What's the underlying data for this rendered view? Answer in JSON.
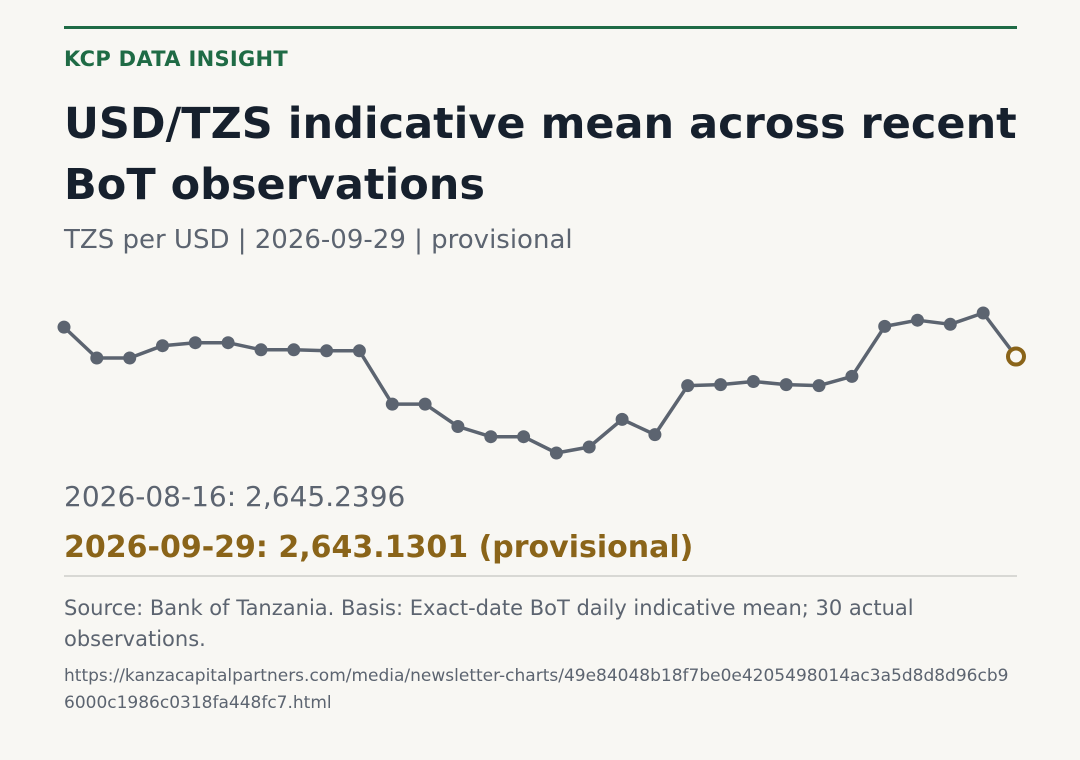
{
  "header": {
    "kicker": "KCP DATA INSIGHT",
    "title": "USD/TZS indicative mean across recent BoT observations",
    "subtitle": "TZS per USD  |  2026-09-29  |  provisional"
  },
  "labels": {
    "first": "2026-08-16: 2,645.2396",
    "last": "2026-09-29: 2,643.1301 (provisional)"
  },
  "footer": {
    "source": "Source: Bank of Tanzania. Basis: Exact-date BoT daily indicative mean; 30 actual observations.",
    "url": "https://kanzacapitalpartners.com/media/newsletter-charts/49e84048b18f7be0e4205498014ac3a5d8d8d96cb96000c1986c0318fa448fc7.html"
  },
  "colors": {
    "accent": "#1f6b45",
    "line": "#5c6470",
    "highlight": "#8a6419"
  },
  "chart_data": {
    "type": "line",
    "x": [
      "2026-08-16",
      "",
      "",
      "",
      "",
      "",
      "",
      "",
      "",
      "",
      "",
      "",
      "",
      "",
      "",
      "",
      "",
      "",
      "",
      "",
      "",
      "",
      "",
      "",
      "",
      "",
      "",
      "",
      "",
      "2026-09-29"
    ],
    "series": [
      {
        "values": [
          2645.2396,
          2643.02,
          2643.02,
          2643.9,
          2644.12,
          2644.12,
          2643.61,
          2643.61,
          2643.54,
          2643.54,
          2639.71,
          2639.71,
          2638.1,
          2637.37,
          2637.37,
          2636.2,
          2636.63,
          2638.61,
          2637.52,
          2641.04,
          2641.11,
          2641.33,
          2641.11,
          2641.04,
          2641.7,
          2645.29,
          2645.73,
          2645.44,
          2646.25,
          2643.1301
        ]
      }
    ],
    "last_point_status": "provisional",
    "ylim": [
      2636.2,
      2646.25
    ],
    "grid": false,
    "legend": "none"
  }
}
